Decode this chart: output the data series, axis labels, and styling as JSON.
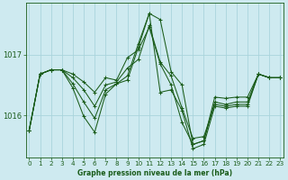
{
  "title": "Graphe pression niveau de la mer (hPa)",
  "background_color": "#ceeaf0",
  "grid_color": "#aad4dc",
  "line_color": "#1a5c1a",
  "xlim": [
    -0.3,
    23.3
  ],
  "ylim": [
    1015.3,
    1017.85
  ],
  "ytick_positions": [
    1016,
    1017
  ],
  "ytick_labels": [
    "1016",
    "1017"
  ],
  "xticks": [
    0,
    1,
    2,
    3,
    4,
    5,
    6,
    7,
    8,
    9,
    10,
    11,
    12,
    13,
    14,
    15,
    16,
    17,
    18,
    19,
    20,
    21,
    22,
    23
  ],
  "series": [
    [
      1015.75,
      1016.68,
      1016.75,
      1016.75,
      1016.68,
      1016.55,
      1016.38,
      1016.62,
      1016.58,
      1016.95,
      1017.08,
      1017.45,
      1016.85,
      1016.5,
      1015.88,
      1015.52,
      1015.58,
      1016.3,
      1016.28,
      1016.3,
      1016.3,
      1016.68,
      1016.62,
      1016.62
    ],
    [
      1015.75,
      1016.68,
      1016.75,
      1016.75,
      1016.62,
      1016.42,
      1016.15,
      1016.5,
      1016.55,
      1016.78,
      1016.92,
      1017.48,
      1016.88,
      1016.65,
      1016.12,
      1015.62,
      1015.65,
      1016.18,
      1016.15,
      1016.18,
      1016.18,
      1016.68,
      1016.62,
      1016.62
    ],
    [
      1015.75,
      1016.68,
      1016.75,
      1016.75,
      1016.52,
      1016.22,
      1015.95,
      1016.42,
      1016.52,
      1016.65,
      1017.18,
      1017.68,
      1017.58,
      1016.72,
      1016.5,
      1015.52,
      1015.58,
      1016.22,
      1016.18,
      1016.22,
      1016.22,
      1016.68,
      1016.62,
      1016.62
    ],
    [
      1015.75,
      1016.68,
      1016.75,
      1016.75,
      1016.45,
      1015.98,
      1015.72,
      1016.35,
      1016.52,
      1016.58,
      1017.12,
      1017.68,
      1016.38,
      1016.42,
      1016.08,
      1015.45,
      1015.52,
      1016.15,
      1016.12,
      1016.15,
      1016.15,
      1016.68,
      1016.62,
      1016.62
    ]
  ]
}
